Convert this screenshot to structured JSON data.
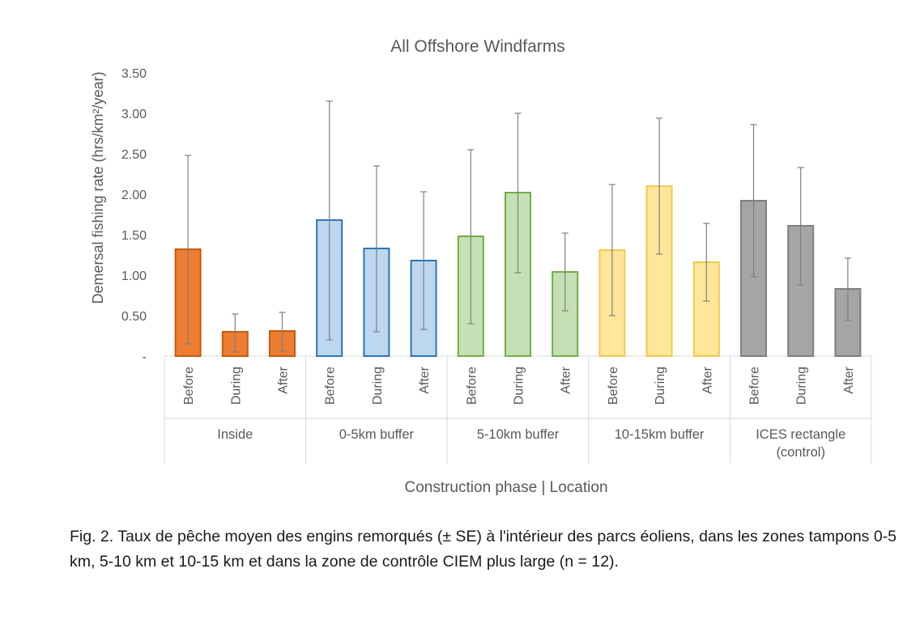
{
  "chart_data": {
    "type": "bar",
    "title": "All Offshore Windfarms",
    "ylabel": "Demersal fishing rate (hrs/km²/year)",
    "xlabel": "Construction phase | Location",
    "ylim": [
      0,
      3.5
    ],
    "yticks": [
      "-",
      "0.50",
      "1.00",
      "1.50",
      "2.00",
      "2.50",
      "3.00",
      "3.50"
    ],
    "phases": [
      "Before",
      "During",
      "After"
    ],
    "groups": [
      {
        "label": [
          "Inside"
        ],
        "color": "#ED7D31",
        "edge": "#C55A11",
        "values": [
          1.32,
          0.3,
          0.31
        ],
        "err_low": [
          0.15,
          0.05,
          0.06
        ],
        "err_high": [
          2.48,
          0.52,
          0.54
        ]
      },
      {
        "label": [
          "0-5km buffer"
        ],
        "color": "#BDD7EE",
        "edge": "#2E75B6",
        "values": [
          1.68,
          1.33,
          1.18
        ],
        "err_low": [
          0.2,
          0.3,
          0.33
        ],
        "err_high": [
          3.15,
          2.35,
          2.03
        ]
      },
      {
        "label": [
          "5-10km buffer"
        ],
        "color": "#C5E0B4",
        "edge": "#70AD47",
        "values": [
          1.48,
          2.02,
          1.04
        ],
        "err_low": [
          0.4,
          1.03,
          0.56
        ],
        "err_high": [
          2.55,
          3.0,
          1.52
        ]
      },
      {
        "label": [
          "10-15km buffer"
        ],
        "color": "#FFE699",
        "edge": "#F2C94C",
        "values": [
          1.31,
          2.1,
          1.16
        ],
        "err_low": [
          0.5,
          1.26,
          0.68
        ],
        "err_high": [
          2.12,
          2.94,
          1.64
        ]
      },
      {
        "label": [
          "ICES rectangle",
          "(control)"
        ],
        "color": "#A5A5A5",
        "edge": "#7F7F7F",
        "values": [
          1.92,
          1.61,
          0.83
        ],
        "err_low": [
          0.98,
          0.88,
          0.44
        ],
        "err_high": [
          2.86,
          2.33,
          1.21
        ]
      }
    ]
  },
  "caption": "Fig. 2. Taux de pêche moyen des engins remorqués (± SE) à l'intérieur des parcs éoliens, dans les zones tampons 0-5 km, 5-10 km et 10-15 km et dans la zone de contrôle CIEM plus large (n = 12)."
}
